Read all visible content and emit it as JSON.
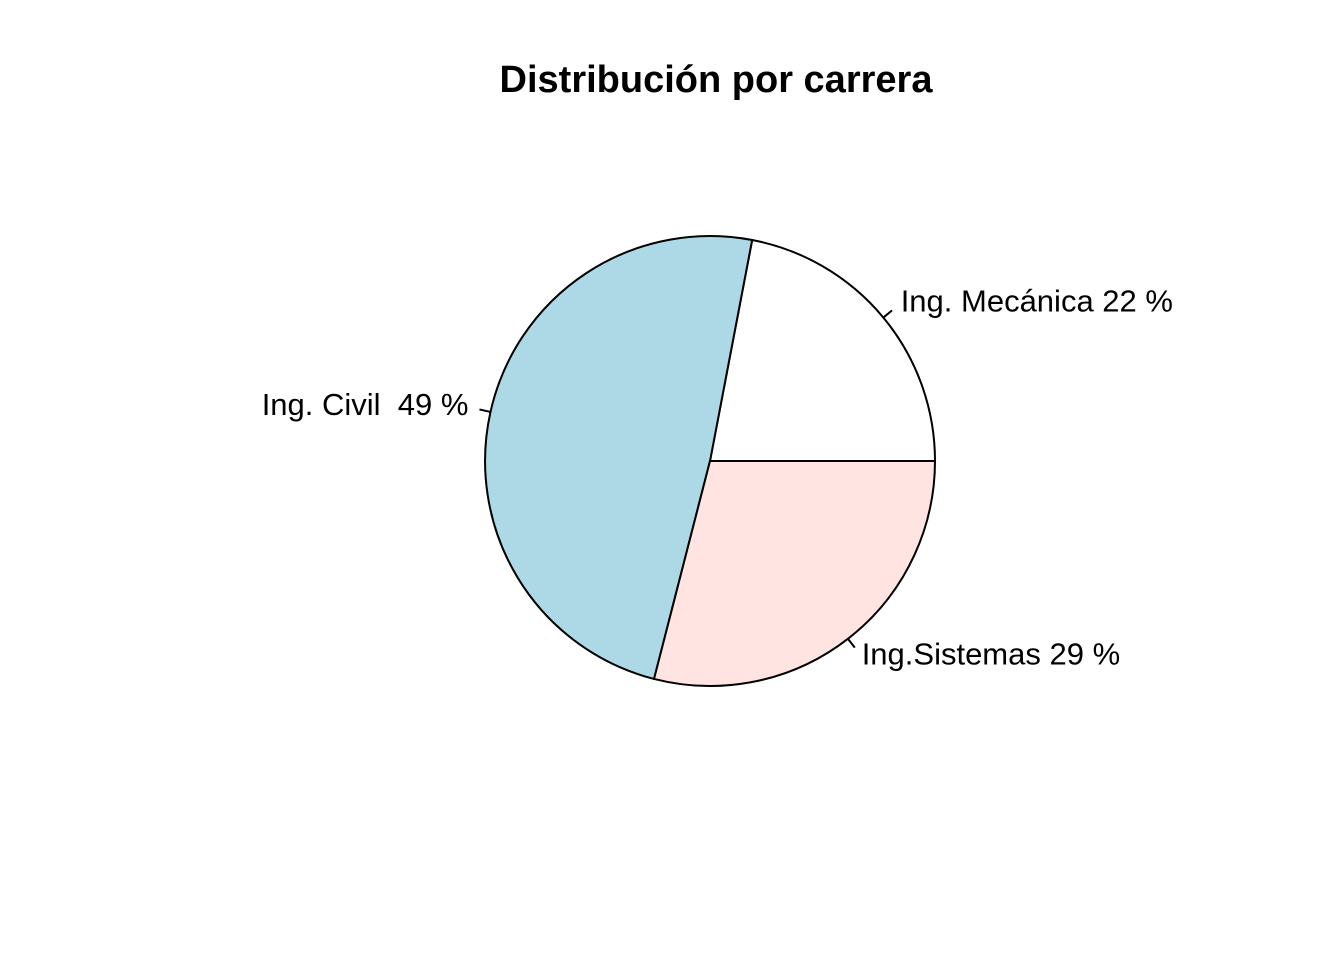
{
  "chart_data": {
    "type": "pie",
    "title": "Distribución por carrera",
    "slices": [
      {
        "label": "Ing. Civil  49 %",
        "value": 49,
        "color": "#ADD8E6"
      },
      {
        "label": "Ing. Mecánica 22 %",
        "value": 22,
        "color": "#FFFFFF"
      },
      {
        "label": "Ing.Sistemas 29 %",
        "value": 29,
        "color": "#FFE4E1"
      }
    ],
    "start_angle_deg": 0,
    "direction": "counterclockwise",
    "legend": "none"
  }
}
